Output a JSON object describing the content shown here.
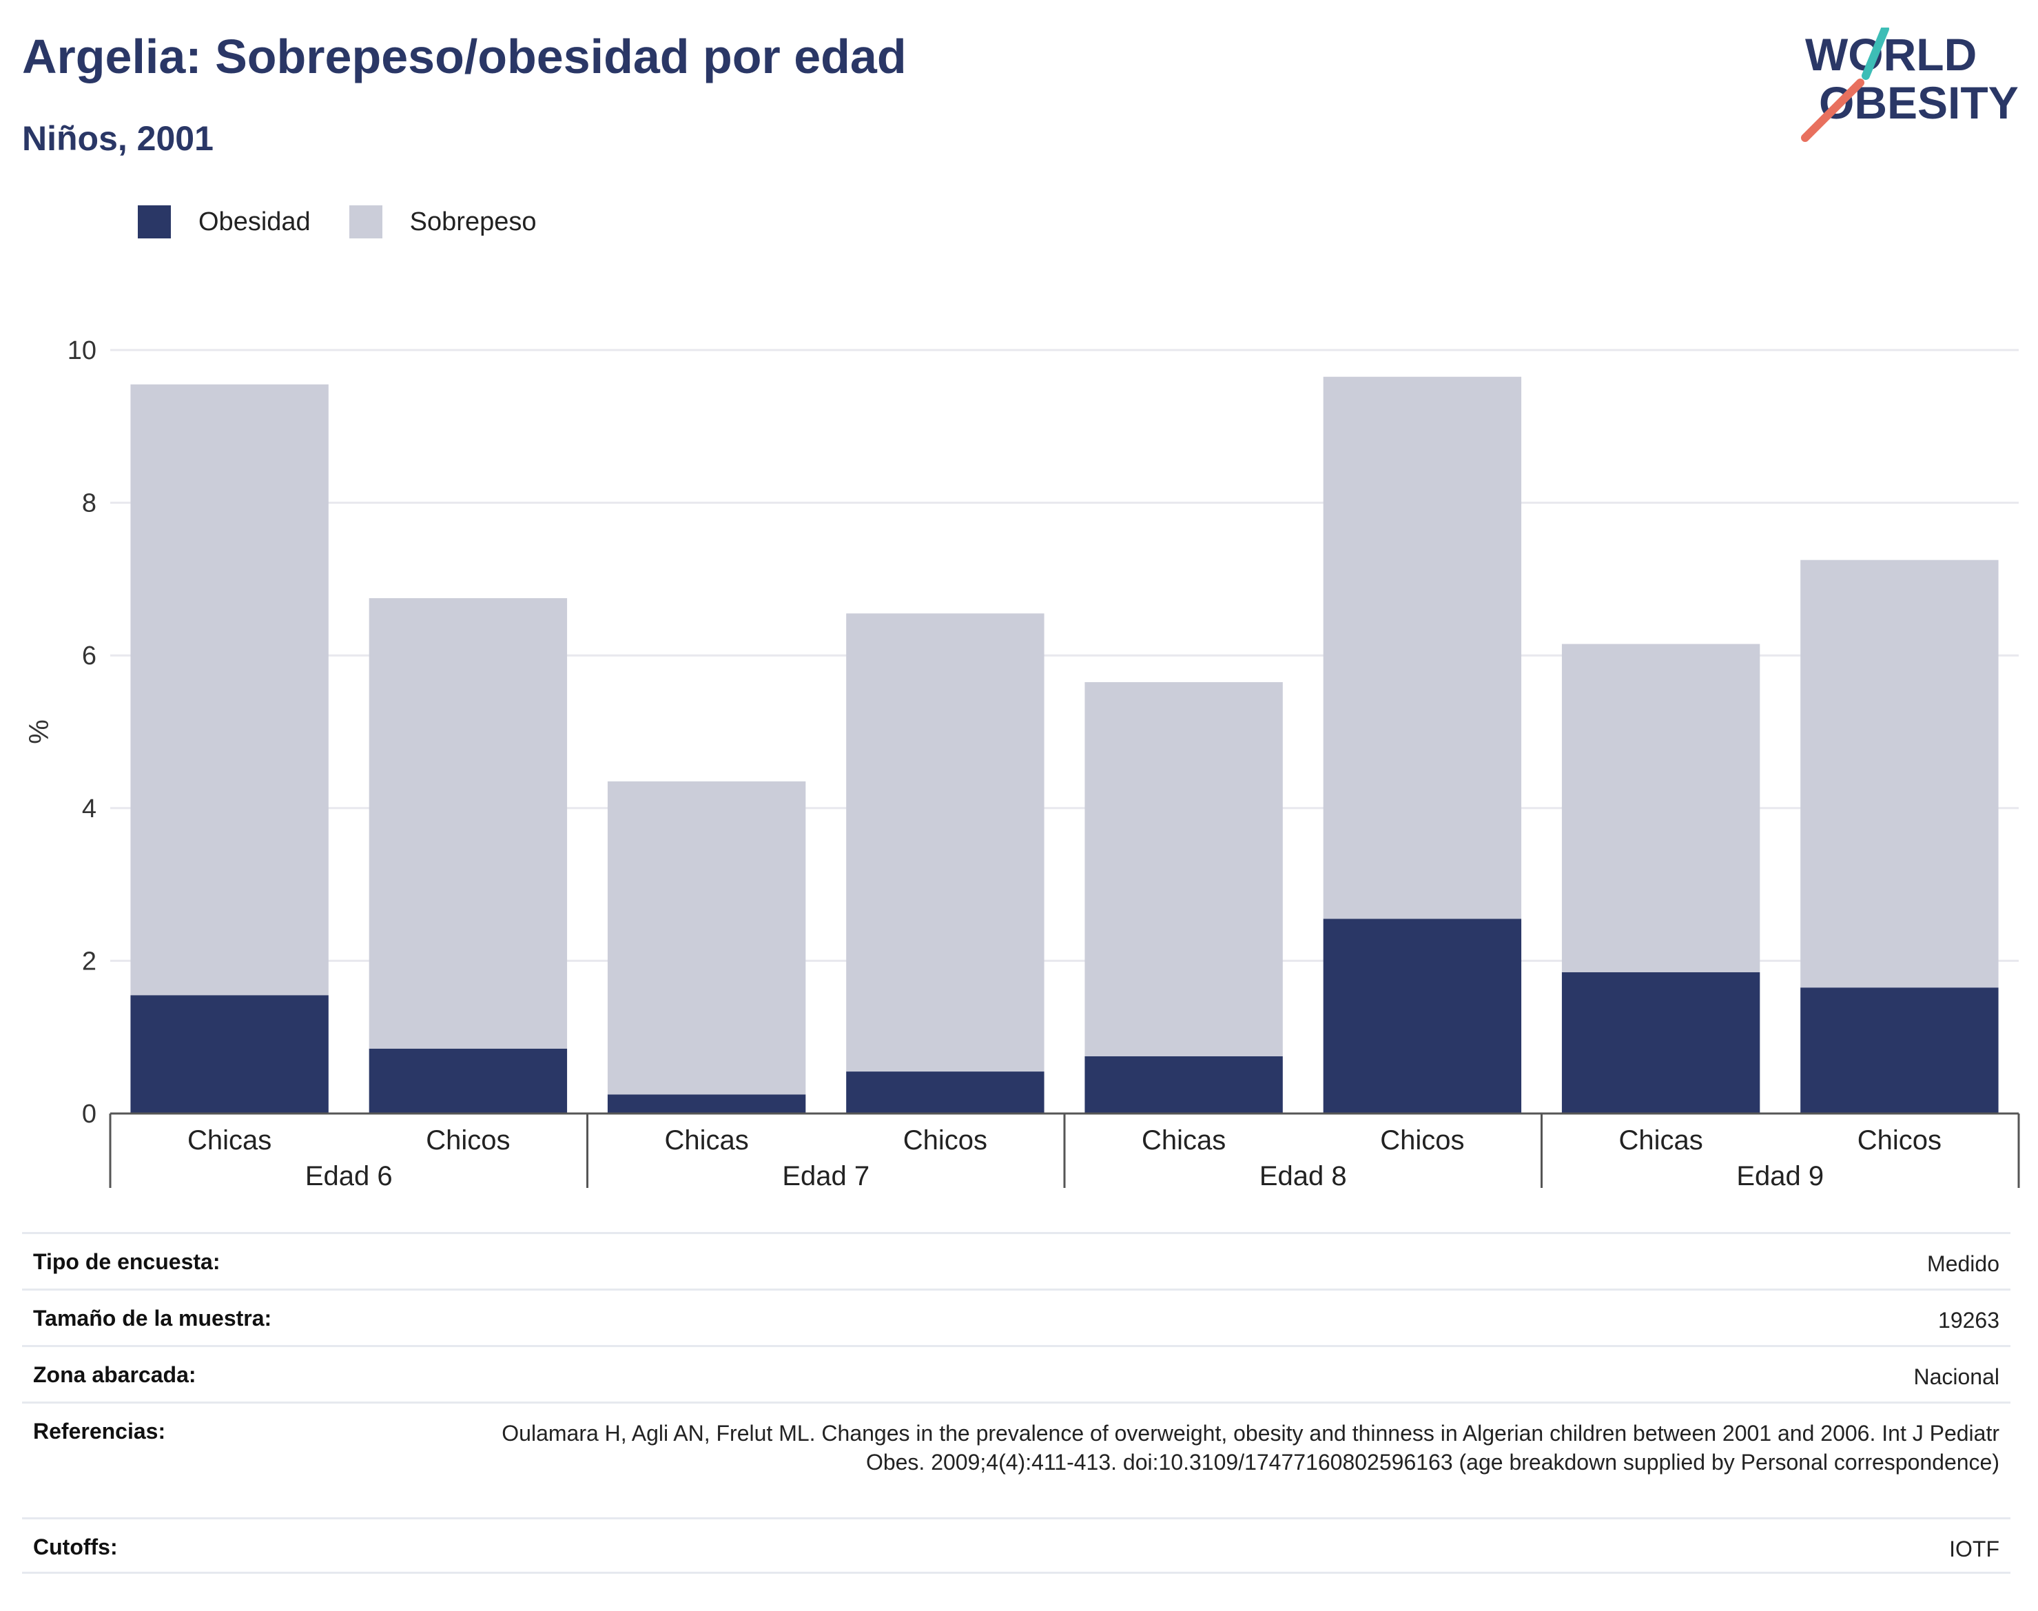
{
  "header": {
    "title": "Argelia: Sobrepeso/obesidad por edad",
    "subtitle": "Niños, 2001"
  },
  "logo": {
    "line1": "WORLD",
    "line2": "OBESITY",
    "colors": {
      "text": "#2a3766",
      "teal": "#3dbdb6",
      "coral": "#e8705e"
    }
  },
  "legend": {
    "items": [
      {
        "label": "Obesidad",
        "color": "#2a3766"
      },
      {
        "label": "Sobrepeso",
        "color": "#cbcdd9"
      }
    ]
  },
  "chart_data": {
    "type": "bar",
    "stacked": true,
    "ylabel": "%",
    "ylim": [
      0,
      10
    ],
    "yticks": [
      0,
      2,
      4,
      6,
      8,
      10
    ],
    "grid": true,
    "legend_position": "top-left",
    "groups": [
      "Edad 6",
      "Edad 7",
      "Edad 8",
      "Edad 9"
    ],
    "categories": [
      "Chicas",
      "Chicos",
      "Chicas",
      "Chicos",
      "Chicas",
      "Chicos",
      "Chicas",
      "Chicos"
    ],
    "series": [
      {
        "name": "Obesidad",
        "color": "#2a3766",
        "values": [
          1.55,
          0.85,
          0.25,
          0.55,
          0.75,
          2.55,
          1.85,
          1.65
        ]
      },
      {
        "name": "Sobrepeso",
        "color": "#cbcdd9",
        "values": [
          8.0,
          5.9,
          4.1,
          6.0,
          4.9,
          7.1,
          4.3,
          5.6
        ]
      }
    ]
  },
  "info": {
    "rows": [
      {
        "label": "Tipo de encuesta:",
        "value": "Medido"
      },
      {
        "label": "Tamaño de la muestra:",
        "value": "19263"
      },
      {
        "label": "Zona abarcada:",
        "value": "Nacional"
      },
      {
        "label": "Referencias:",
        "value": "Oulamara H, Agli AN, Frelut ML. Changes in the prevalence of overweight, obesity and thinness in Algerian children between 2001 and 2006. Int J Pediatr Obes. 2009;4(4):411-413. doi:10.3109/17477160802596163 (age breakdown supplied by Personal correspondence)"
      },
      {
        "label": "Cutoffs:",
        "value": "IOTF"
      }
    ]
  }
}
